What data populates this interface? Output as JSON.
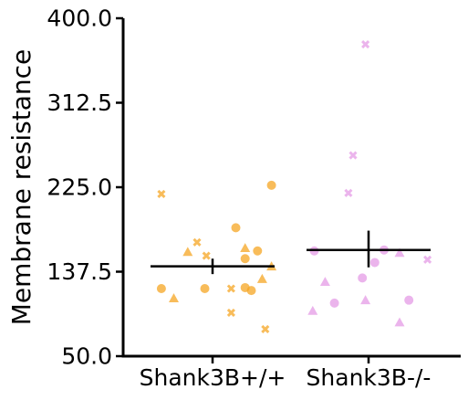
{
  "chart_data": {
    "type": "scatter",
    "title": "",
    "xlabel": "",
    "ylabel": "Membrane resistance",
    "ylim": [
      50,
      400
    ],
    "yticks": [
      "50.0",
      "137.5",
      "225.0",
      "312.5",
      "400.0"
    ],
    "categories": [
      "Shank3B+/+",
      "Shank3B-/-"
    ],
    "grid": false,
    "legend": "none",
    "groups": [
      {
        "category": "Shank3B+/+",
        "color": "#F5A623",
        "mean": 143,
        "sem_range": [
          135,
          151
        ],
        "points": [
          {
            "offset": -0.33,
            "y": 218,
            "marker": "x"
          },
          {
            "offset": -0.1,
            "y": 168,
            "marker": "x"
          },
          {
            "offset": -0.04,
            "y": 154,
            "marker": "x"
          },
          {
            "offset": 0.12,
            "y": 120,
            "marker": "x"
          },
          {
            "offset": 0.12,
            "y": 95,
            "marker": "x"
          },
          {
            "offset": 0.34,
            "y": 78,
            "marker": "x"
          },
          {
            "offset": -0.16,
            "y": 158,
            "marker": "triangle"
          },
          {
            "offset": -0.25,
            "y": 110,
            "marker": "triangle"
          },
          {
            "offset": 0.21,
            "y": 162,
            "marker": "triangle"
          },
          {
            "offset": 0.32,
            "y": 130,
            "marker": "triangle"
          },
          {
            "offset": 0.38,
            "y": 143,
            "marker": "triangle"
          },
          {
            "offset": -0.33,
            "y": 120,
            "marker": "circle"
          },
          {
            "offset": -0.05,
            "y": 120,
            "marker": "circle"
          },
          {
            "offset": 0.15,
            "y": 183,
            "marker": "circle"
          },
          {
            "offset": 0.21,
            "y": 151,
            "marker": "circle"
          },
          {
            "offset": 0.29,
            "y": 159,
            "marker": "circle"
          },
          {
            "offset": 0.21,
            "y": 121,
            "marker": "circle"
          },
          {
            "offset": 0.25,
            "y": 118,
            "marker": "circle"
          },
          {
            "offset": 0.38,
            "y": 227,
            "marker": "circle"
          }
        ]
      },
      {
        "category": "Shank3B-/-",
        "color": "#E49BE6",
        "mean": 160,
        "sem_range": [
          142,
          180
        ],
        "points": [
          {
            "offset": -0.13,
            "y": 219,
            "marker": "x"
          },
          {
            "offset": -0.1,
            "y": 258,
            "marker": "x"
          },
          {
            "offset": -0.02,
            "y": 373,
            "marker": "x"
          },
          {
            "offset": 0.38,
            "y": 150,
            "marker": "x"
          },
          {
            "offset": -0.36,
            "y": 97,
            "marker": "triangle"
          },
          {
            "offset": -0.28,
            "y": 127,
            "marker": "triangle"
          },
          {
            "offset": -0.02,
            "y": 108,
            "marker": "triangle"
          },
          {
            "offset": 0.2,
            "y": 85,
            "marker": "triangle"
          },
          {
            "offset": 0.2,
            "y": 157,
            "marker": "triangle"
          },
          {
            "offset": -0.35,
            "y": 159,
            "marker": "circle"
          },
          {
            "offset": -0.22,
            "y": 105,
            "marker": "circle"
          },
          {
            "offset": -0.04,
            "y": 131,
            "marker": "circle"
          },
          {
            "offset": 0.04,
            "y": 147,
            "marker": "circle"
          },
          {
            "offset": 0.1,
            "y": 160,
            "marker": "circle"
          },
          {
            "offset": 0.26,
            "y": 108,
            "marker": "circle"
          }
        ]
      }
    ]
  }
}
